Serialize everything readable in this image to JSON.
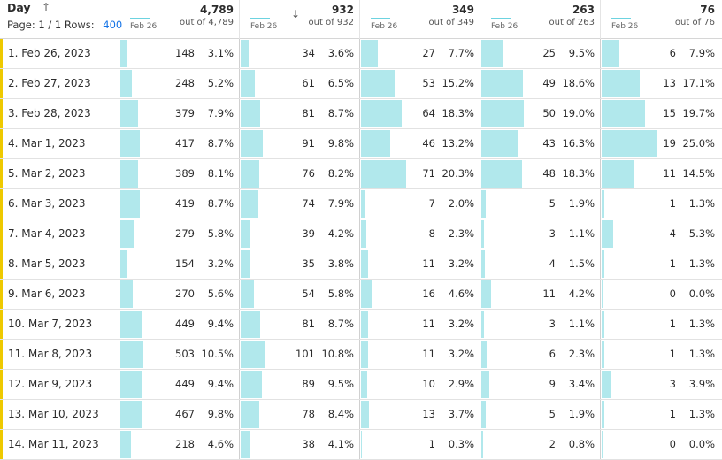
{
  "header": {
    "dimension_title": "Day",
    "page_label": "Page: 1 / 1",
    "rows_label": "Rows:",
    "rows_value": "400",
    "columns": [
      {
        "total": "4,789",
        "out_of": "out of 4,789",
        "spark_date": "Feb 26"
      },
      {
        "total": "932",
        "out_of": "out of 932",
        "spark_date": "Feb 26"
      },
      {
        "total": "349",
        "out_of": "out of 349",
        "spark_date": "Feb 26"
      },
      {
        "total": "263",
        "out_of": "out of 263",
        "spark_date": "Feb 26"
      },
      {
        "total": "76",
        "out_of": "out of 76",
        "spark_date": "Feb 26"
      }
    ]
  },
  "icons": {
    "sort_ascending": "arrow-up-icon",
    "sort_descending": "arrow-down-icon"
  },
  "colors": {
    "bar": "#b1e8ec",
    "row_marker": "#eec900",
    "link": "#1473e6"
  },
  "rows": [
    {
      "label": "1.  Feb 26, 2023",
      "cells": [
        {
          "v": "148",
          "p": "3.1%",
          "f": 0.031
        },
        {
          "v": "34",
          "p": "3.6%",
          "f": 0.036
        },
        {
          "v": "27",
          "p": "7.7%",
          "f": 0.077
        },
        {
          "v": "25",
          "p": "9.5%",
          "f": 0.095
        },
        {
          "v": "6",
          "p": "7.9%",
          "f": 0.079
        }
      ]
    },
    {
      "label": "2.  Feb 27, 2023",
      "cells": [
        {
          "v": "248",
          "p": "5.2%",
          "f": 0.052
        },
        {
          "v": "61",
          "p": "6.5%",
          "f": 0.065
        },
        {
          "v": "53",
          "p": "15.2%",
          "f": 0.152
        },
        {
          "v": "49",
          "p": "18.6%",
          "f": 0.186
        },
        {
          "v": "13",
          "p": "17.1%",
          "f": 0.171
        }
      ]
    },
    {
      "label": "3.  Feb 28, 2023",
      "cells": [
        {
          "v": "379",
          "p": "7.9%",
          "f": 0.079
        },
        {
          "v": "81",
          "p": "8.7%",
          "f": 0.087
        },
        {
          "v": "64",
          "p": "18.3%",
          "f": 0.183
        },
        {
          "v": "50",
          "p": "19.0%",
          "f": 0.19
        },
        {
          "v": "15",
          "p": "19.7%",
          "f": 0.197
        }
      ]
    },
    {
      "label": "4.  Mar 1, 2023",
      "cells": [
        {
          "v": "417",
          "p": "8.7%",
          "f": 0.087
        },
        {
          "v": "91",
          "p": "9.8%",
          "f": 0.098
        },
        {
          "v": "46",
          "p": "13.2%",
          "f": 0.132
        },
        {
          "v": "43",
          "p": "16.3%",
          "f": 0.163
        },
        {
          "v": "19",
          "p": "25.0%",
          "f": 0.25
        }
      ]
    },
    {
      "label": "5.  Mar 2, 2023",
      "cells": [
        {
          "v": "389",
          "p": "8.1%",
          "f": 0.081
        },
        {
          "v": "76",
          "p": "8.2%",
          "f": 0.082
        },
        {
          "v": "71",
          "p": "20.3%",
          "f": 0.203
        },
        {
          "v": "48",
          "p": "18.3%",
          "f": 0.183
        },
        {
          "v": "11",
          "p": "14.5%",
          "f": 0.145
        }
      ]
    },
    {
      "label": "6.  Mar 3, 2023",
      "cells": [
        {
          "v": "419",
          "p": "8.7%",
          "f": 0.087
        },
        {
          "v": "74",
          "p": "7.9%",
          "f": 0.079
        },
        {
          "v": "7",
          "p": "2.0%",
          "f": 0.02
        },
        {
          "v": "5",
          "p": "1.9%",
          "f": 0.019
        },
        {
          "v": "1",
          "p": "1.3%",
          "f": 0.013
        }
      ]
    },
    {
      "label": "7.  Mar 4, 2023",
      "cells": [
        {
          "v": "279",
          "p": "5.8%",
          "f": 0.058
        },
        {
          "v": "39",
          "p": "4.2%",
          "f": 0.042
        },
        {
          "v": "8",
          "p": "2.3%",
          "f": 0.023
        },
        {
          "v": "3",
          "p": "1.1%",
          "f": 0.011
        },
        {
          "v": "4",
          "p": "5.3%",
          "f": 0.053
        }
      ]
    },
    {
      "label": "8.  Mar 5, 2023",
      "cells": [
        {
          "v": "154",
          "p": "3.2%",
          "f": 0.032
        },
        {
          "v": "35",
          "p": "3.8%",
          "f": 0.038
        },
        {
          "v": "11",
          "p": "3.2%",
          "f": 0.032
        },
        {
          "v": "4",
          "p": "1.5%",
          "f": 0.015
        },
        {
          "v": "1",
          "p": "1.3%",
          "f": 0.013
        }
      ]
    },
    {
      "label": "9.  Mar 6, 2023",
      "cells": [
        {
          "v": "270",
          "p": "5.6%",
          "f": 0.056
        },
        {
          "v": "54",
          "p": "5.8%",
          "f": 0.058
        },
        {
          "v": "16",
          "p": "4.6%",
          "f": 0.046
        },
        {
          "v": "11",
          "p": "4.2%",
          "f": 0.042
        },
        {
          "v": "0",
          "p": "0.0%",
          "f": 0.0
        }
      ]
    },
    {
      "label": "10.  Mar 7, 2023",
      "cells": [
        {
          "v": "449",
          "p": "9.4%",
          "f": 0.094
        },
        {
          "v": "81",
          "p": "8.7%",
          "f": 0.087
        },
        {
          "v": "11",
          "p": "3.2%",
          "f": 0.032
        },
        {
          "v": "3",
          "p": "1.1%",
          "f": 0.011
        },
        {
          "v": "1",
          "p": "1.3%",
          "f": 0.013
        }
      ]
    },
    {
      "label": "11.  Mar 8, 2023",
      "cells": [
        {
          "v": "503",
          "p": "10.5%",
          "f": 0.105
        },
        {
          "v": "101",
          "p": "10.8%",
          "f": 0.108
        },
        {
          "v": "11",
          "p": "3.2%",
          "f": 0.032
        },
        {
          "v": "6",
          "p": "2.3%",
          "f": 0.023
        },
        {
          "v": "1",
          "p": "1.3%",
          "f": 0.013
        }
      ]
    },
    {
      "label": "12.  Mar 9, 2023",
      "cells": [
        {
          "v": "449",
          "p": "9.4%",
          "f": 0.094
        },
        {
          "v": "89",
          "p": "9.5%",
          "f": 0.095
        },
        {
          "v": "10",
          "p": "2.9%",
          "f": 0.029
        },
        {
          "v": "9",
          "p": "3.4%",
          "f": 0.034
        },
        {
          "v": "3",
          "p": "3.9%",
          "f": 0.039
        }
      ]
    },
    {
      "label": "13.  Mar 10, 2023",
      "cells": [
        {
          "v": "467",
          "p": "9.8%",
          "f": 0.098
        },
        {
          "v": "78",
          "p": "8.4%",
          "f": 0.084
        },
        {
          "v": "13",
          "p": "3.7%",
          "f": 0.037
        },
        {
          "v": "5",
          "p": "1.9%",
          "f": 0.019
        },
        {
          "v": "1",
          "p": "1.3%",
          "f": 0.013
        }
      ]
    },
    {
      "label": "14.  Mar 11, 2023",
      "cells": [
        {
          "v": "218",
          "p": "4.6%",
          "f": 0.046
        },
        {
          "v": "38",
          "p": "4.1%",
          "f": 0.041
        },
        {
          "v": "1",
          "p": "0.3%",
          "f": 0.003
        },
        {
          "v": "2",
          "p": "0.8%",
          "f": 0.008
        },
        {
          "v": "0",
          "p": "0.0%",
          "f": 0.0
        }
      ]
    }
  ]
}
